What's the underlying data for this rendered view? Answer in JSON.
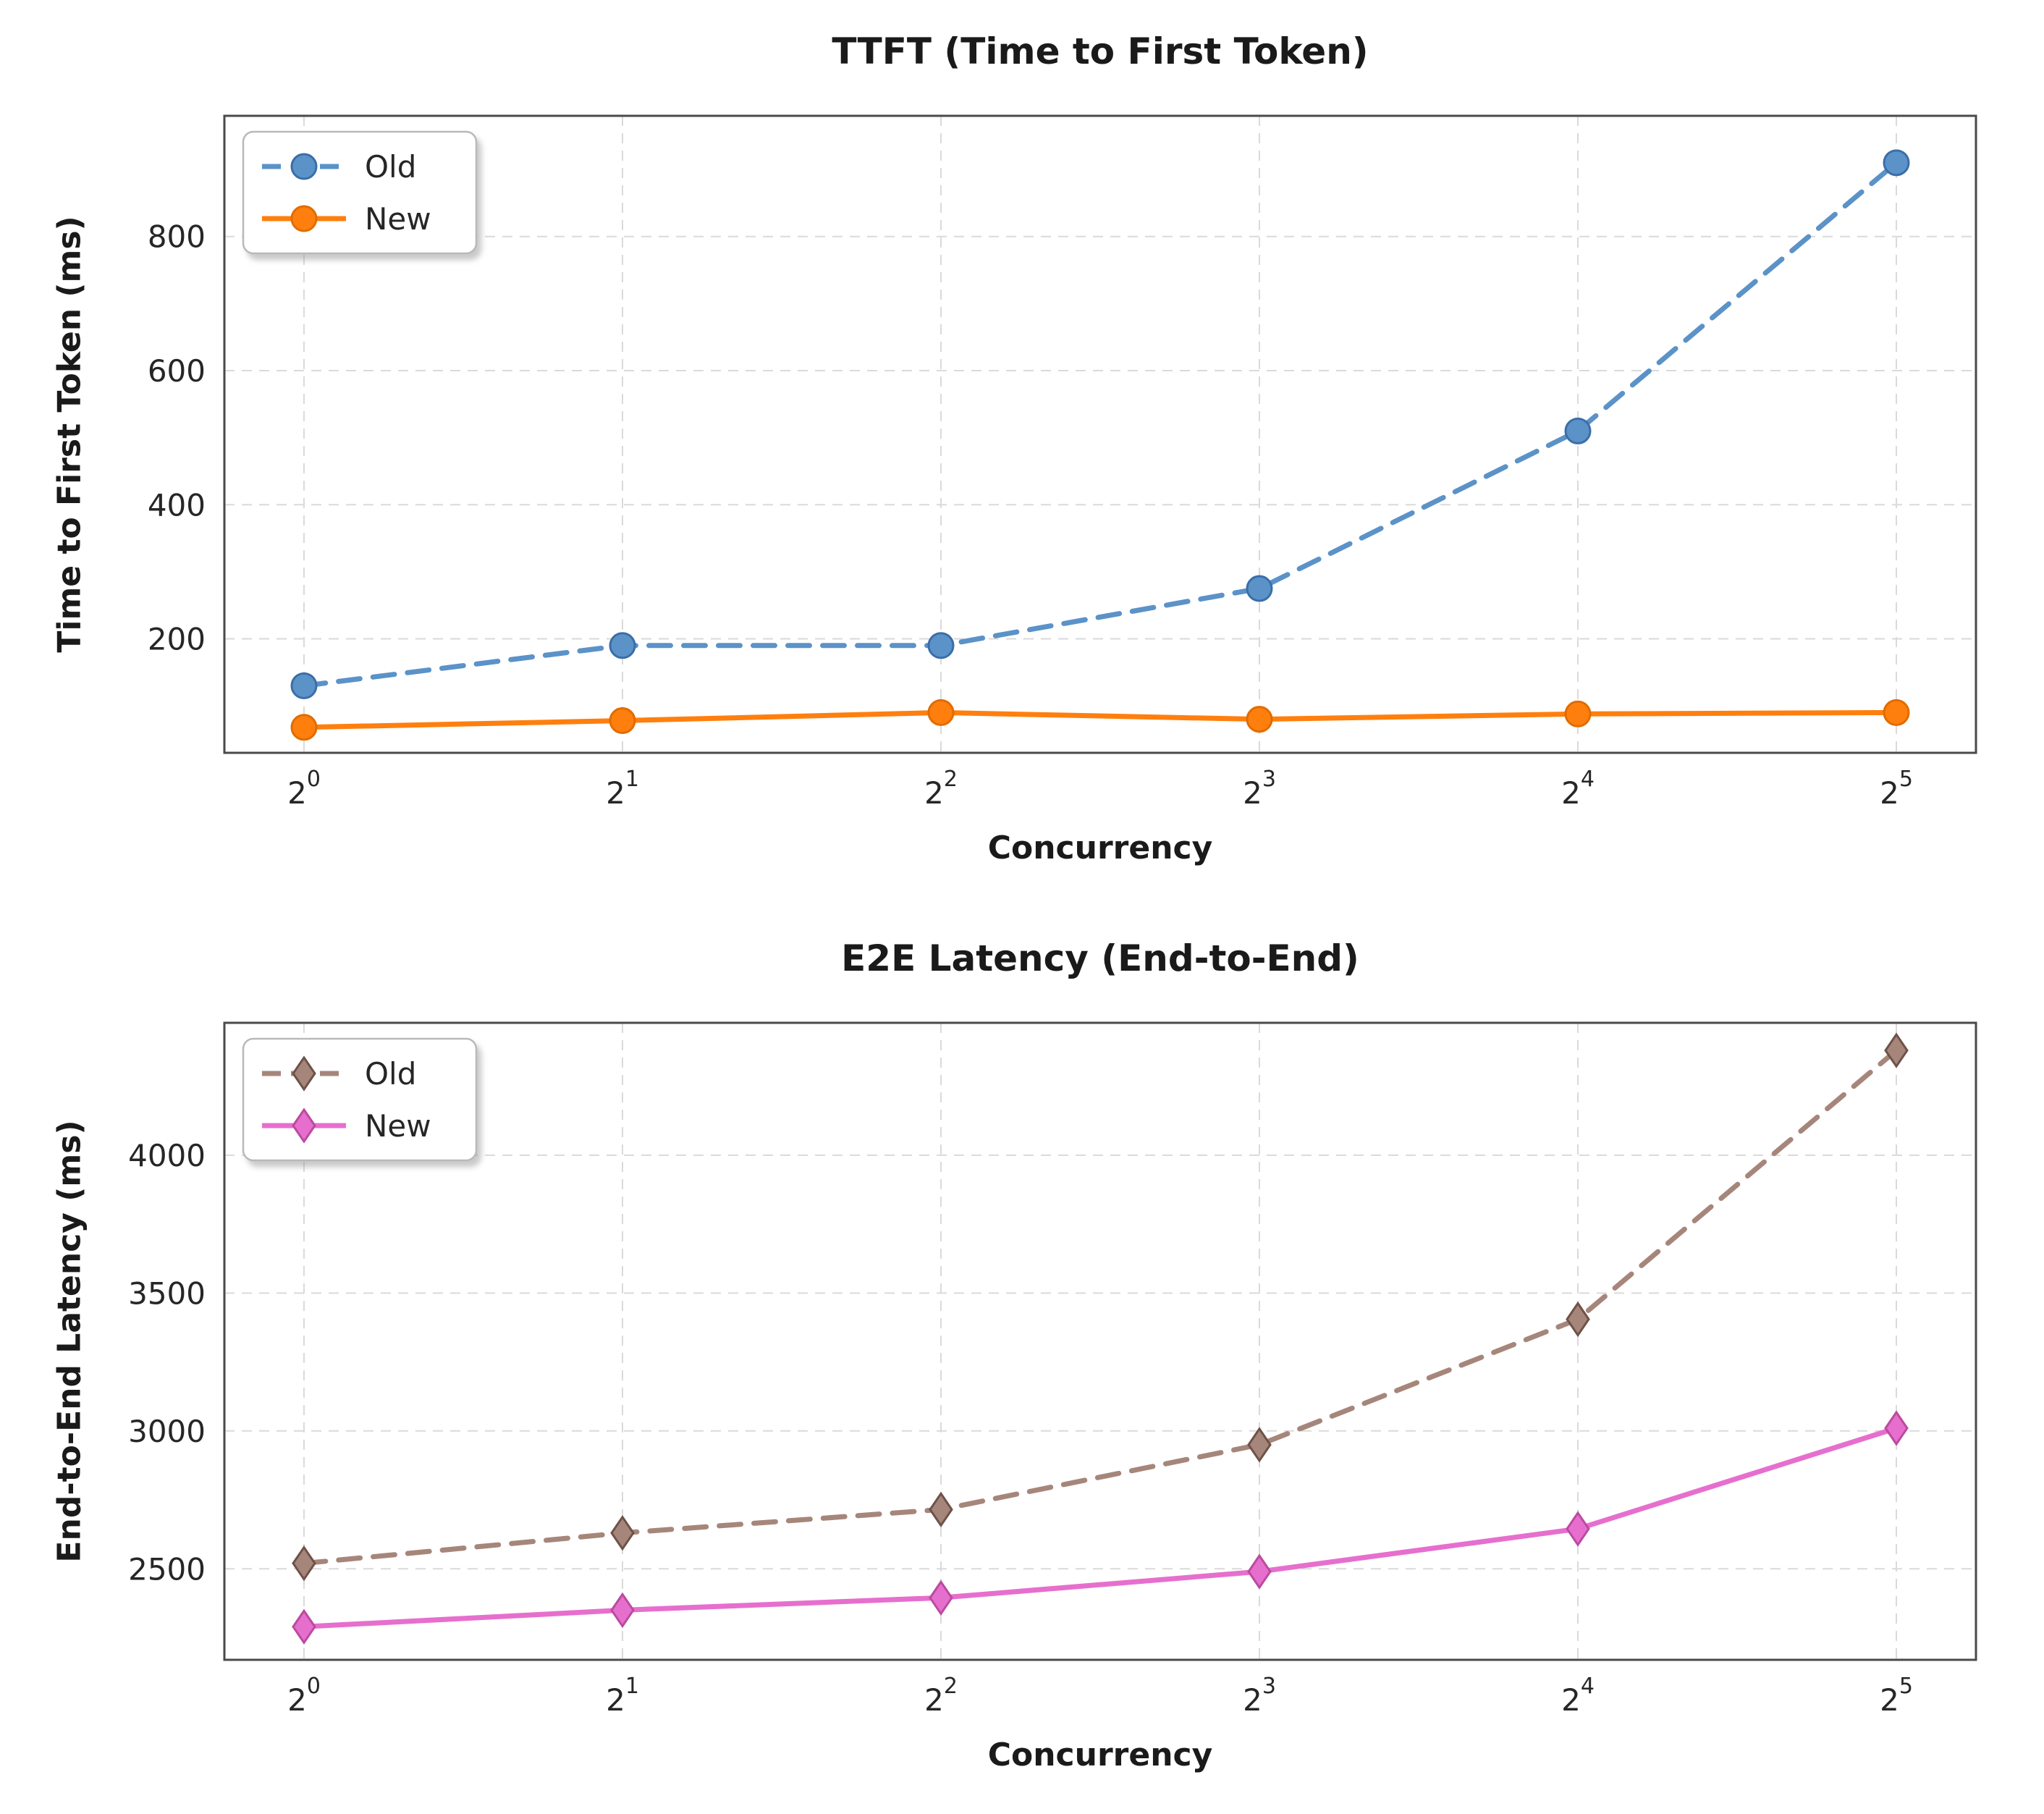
{
  "page": {
    "background_color": "#ffffff",
    "text_color": "#1a1a1a"
  },
  "chart_data": [
    {
      "type": "line",
      "title": "TTFT (Time to First Token)",
      "xlabel": "Concurrency",
      "ylabel": "Time to First Token (ms)",
      "x_scale": "log2",
      "x_tick_base": "2",
      "x_exponents": [
        "0",
        "1",
        "2",
        "3",
        "4",
        "5"
      ],
      "x_values": [
        1,
        2,
        4,
        8,
        16,
        32
      ],
      "ylim": [
        30,
        980
      ],
      "yticks": [
        200,
        400,
        600,
        800
      ],
      "grid": true,
      "legend_position": "upper-left",
      "series": [
        {
          "name": "Old",
          "values": [
            130,
            190,
            190,
            275,
            510,
            910
          ],
          "color": "#5b92c8",
          "edge_color": "#3a6ea8",
          "line_style": "dashed",
          "marker": "circle"
        },
        {
          "name": "New",
          "values": [
            68,
            78,
            90,
            80,
            88,
            90
          ],
          "color": "#ff7f0e",
          "edge_color": "#e06c00",
          "line_style": "solid",
          "marker": "circle"
        }
      ]
    },
    {
      "type": "line",
      "title": "E2E Latency (End-to-End)",
      "xlabel": "Concurrency",
      "ylabel": "End-to-End Latency (ms)",
      "x_scale": "log2",
      "x_tick_base": "2",
      "x_exponents": [
        "0",
        "1",
        "2",
        "3",
        "4",
        "5"
      ],
      "x_values": [
        1,
        2,
        4,
        8,
        16,
        32
      ],
      "ylim": [
        2170,
        4480
      ],
      "yticks": [
        2500,
        3000,
        3500,
        4000
      ],
      "grid": true,
      "legend_position": "upper-left",
      "series": [
        {
          "name": "Old",
          "values": [
            2520,
            2630,
            2715,
            2950,
            3405,
            4380
          ],
          "color": "#a6867b",
          "edge_color": "#6e5248",
          "line_style": "dashed",
          "marker": "diamond"
        },
        {
          "name": "New",
          "values": [
            2290,
            2350,
            2395,
            2490,
            2645,
            3010
          ],
          "color": "#e66fce",
          "edge_color": "#bb4a9f",
          "line_style": "solid",
          "marker": "diamond"
        }
      ]
    }
  ]
}
